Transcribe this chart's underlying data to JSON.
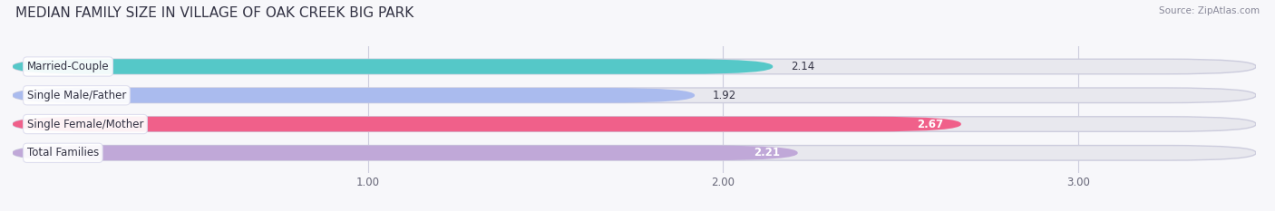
{
  "title": "MEDIAN FAMILY SIZE IN VILLAGE OF OAK CREEK BIG PARK",
  "source": "Source: ZipAtlas.com",
  "categories": [
    "Married-Couple",
    "Single Male/Father",
    "Single Female/Mother",
    "Total Families"
  ],
  "values": [
    2.14,
    1.92,
    2.67,
    2.21
  ],
  "bar_colors": [
    "#55c8c8",
    "#aabbee",
    "#f0608a",
    "#c0a8d8"
  ],
  "bar_bg_color": "#e8e8ee",
  "value_inside": [
    false,
    false,
    true,
    true
  ],
  "xlim": [
    0.0,
    3.5
  ],
  "xticks": [
    1.0,
    2.0,
    3.0
  ],
  "xtick_labels": [
    "1.00",
    "2.00",
    "3.00"
  ],
  "title_fontsize": 11,
  "label_fontsize": 8.5,
  "value_fontsize": 8.5,
  "source_fontsize": 7.5,
  "bar_height": 0.52,
  "background_color": "#f7f7fa"
}
